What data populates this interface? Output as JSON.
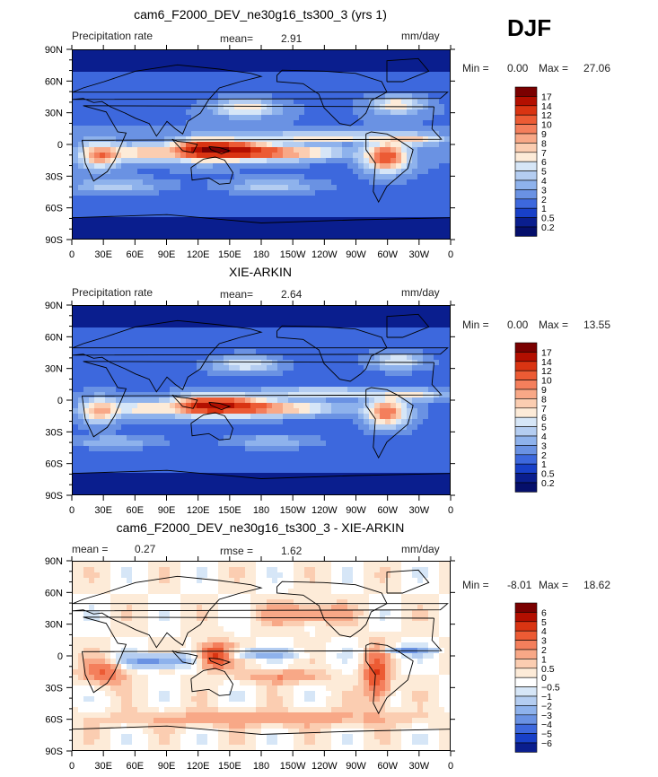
{
  "season": "DJF",
  "lat_ticks": [
    "90N",
    "60N",
    "30N",
    "0",
    "30S",
    "60S",
    "90S"
  ],
  "lon_ticks": [
    "0",
    "30E",
    "60E",
    "90E",
    "120E",
    "150E",
    "180",
    "150W",
    "120W",
    "90W",
    "60W",
    "30W",
    "0"
  ],
  "chart_data": [
    {
      "type": "heatmap",
      "title": "cam6_F2000_DEV_ne30g16_ts300_3 (yrs 1)",
      "left_label": "Precipitation rate",
      "mean_label": "mean=",
      "mean_value": "2.91",
      "units": "mm/day",
      "min_label": "Min =",
      "min_value": "0.00",
      "max_label": "Max =",
      "max_value": "27.06",
      "colorbar": {
        "levels": [
          "17",
          "14",
          "12",
          "10",
          "9",
          "8",
          "7",
          "6",
          "5",
          "4",
          "3",
          "2",
          "1",
          "0.5",
          "0.2"
        ],
        "colors": [
          "#7a0000",
          "#b30f00",
          "#d93412",
          "#ec5b34",
          "#f47f5c",
          "#f8a887",
          "#fbcdb1",
          "#fdebd8",
          "#d6e6f7",
          "#b4cdf1",
          "#8eb2ec",
          "#6a92e3",
          "#3d68dd",
          "#1840c8",
          "#0a1e8e",
          "#050f6b"
        ]
      }
    },
    {
      "type": "heatmap",
      "title": "XIE-ARKIN",
      "left_label": "Precipitation rate",
      "mean_label": "mean=",
      "mean_value": "2.64",
      "units": "mm/day",
      "min_label": "Min =",
      "min_value": "0.00",
      "max_label": "Max =",
      "max_value": "13.55",
      "colorbar": {
        "levels": [
          "17",
          "14",
          "12",
          "10",
          "9",
          "8",
          "7",
          "6",
          "5",
          "4",
          "3",
          "2",
          "1",
          "0.5",
          "0.2"
        ],
        "colors": [
          "#7a0000",
          "#b30f00",
          "#d93412",
          "#ec5b34",
          "#f47f5c",
          "#f8a887",
          "#fbcdb1",
          "#fdebd8",
          "#d6e6f7",
          "#b4cdf1",
          "#8eb2ec",
          "#6a92e3",
          "#3d68dd",
          "#1840c8",
          "#0a1e8e",
          "#050f6b"
        ]
      }
    },
    {
      "type": "heatmap",
      "title": "cam6_F2000_DEV_ne30g16_ts300_3 - XIE-ARKIN",
      "left_label": "mean =",
      "mean_label": "",
      "mean_value": "0.27",
      "rmse_label": "rmse =",
      "rmse_value": "1.62",
      "units": "mm/day",
      "min_label": "Min =",
      "min_value": "-8.01",
      "max_label": "Max =",
      "max_value": "18.62",
      "colorbar": {
        "levels": [
          "6",
          "5",
          "4",
          "3",
          "2",
          "1",
          "0.5",
          "0",
          "−0.5",
          "−1",
          "−2",
          "−3",
          "−4",
          "−5",
          "−6"
        ],
        "colors": [
          "#7a0000",
          "#b30f00",
          "#d93412",
          "#ec5b34",
          "#f47f5c",
          "#f8a887",
          "#fbcdb1",
          "#fdebd8",
          "#ffffff",
          "#d6e6f7",
          "#b4cdf1",
          "#8eb2ec",
          "#6a92e3",
          "#3d68dd",
          "#1840c8",
          "#0a1e8e"
        ]
      }
    }
  ]
}
